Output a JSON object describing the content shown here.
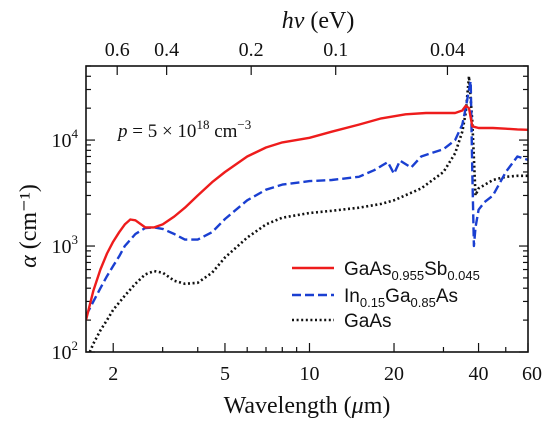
{
  "chart_data": {
    "type": "line",
    "top_axis_label": "hν (eV)",
    "top_ticks": [
      "0.6",
      "0.4",
      "0.2",
      "0.1",
      "0.04"
    ],
    "top_tick_values_ev": [
      0.6,
      0.4,
      0.2,
      0.1,
      0.04
    ],
    "xlabel": "Wavelength (μm)",
    "ylabel": "α (cm⁻¹)",
    "xscale": "log",
    "yscale": "log",
    "xlim": [
      1.6,
      60
    ],
    "ylim": [
      100,
      50000
    ],
    "x_ticks": [
      2,
      5,
      10,
      20,
      40,
      60
    ],
    "x_tick_labels": [
      "2",
      "5",
      "10",
      "20",
      "40",
      "60"
    ],
    "y_ticks": [
      100,
      1000,
      10000
    ],
    "y_tick_labels": [
      {
        "base": "10",
        "exp": "2"
      },
      {
        "base": "10",
        "exp": "3"
      },
      {
        "base": "10",
        "exp": "4"
      }
    ],
    "annotation": {
      "prefix": "p = 5 × 10",
      "exp1": "18",
      "mid": " cm",
      "exp2": "−3"
    },
    "legend_position": "bottom-right",
    "series": [
      {
        "label_parts": [
          [
            "GaAs",
            ""
          ],
          [
            "0.955",
            "sub"
          ],
          [
            "Sb",
            ""
          ],
          [
            "0.045",
            "sub"
          ]
        ],
        "color": "#ee1c1c",
        "dash": "solid",
        "x": [
          1.6,
          1.7,
          1.8,
          1.9,
          2.0,
          2.1,
          2.2,
          2.3,
          2.4,
          2.6,
          2.8,
          3.0,
          3.3,
          3.6,
          4.0,
          4.5,
          5.0,
          6.0,
          7.0,
          8.0,
          10,
          12,
          15,
          18,
          22,
          26,
          30,
          33,
          35,
          36,
          37,
          38,
          40,
          45,
          50,
          55,
          60
        ],
        "y": [
          200,
          380,
          600,
          850,
          1100,
          1350,
          1600,
          1780,
          1750,
          1500,
          1500,
          1600,
          1900,
          2300,
          3000,
          4000,
          5000,
          7000,
          8500,
          9500,
          10500,
          12000,
          14000,
          16000,
          17500,
          18000,
          18000,
          18000,
          19000,
          21000,
          20000,
          13500,
          13000,
          13000,
          12800,
          12600,
          12500
        ]
      },
      {
        "label_parts": [
          [
            "In",
            ""
          ],
          [
            "0.15",
            "sub"
          ],
          [
            "Ga",
            ""
          ],
          [
            "0.85",
            "sub"
          ],
          [
            "As",
            ""
          ]
        ],
        "color": "#1a3fd1",
        "dash": "9,4",
        "x": [
          1.6,
          1.7,
          1.8,
          1.9,
          2.0,
          2.1,
          2.2,
          2.4,
          2.6,
          2.8,
          3.0,
          3.3,
          3.6,
          4.0,
          4.5,
          5.0,
          6.0,
          7.0,
          8.0,
          10,
          12,
          15,
          17,
          19,
          20,
          21,
          23,
          25,
          27,
          30,
          33,
          35,
          36,
          37,
          37.5,
          38,
          38.5,
          39,
          40,
          42,
          45,
          50,
          55,
          60
        ],
        "y": [
          220,
          300,
          400,
          520,
          650,
          800,
          1000,
          1300,
          1480,
          1500,
          1450,
          1300,
          1150,
          1150,
          1350,
          1800,
          2700,
          3400,
          3800,
          4100,
          4200,
          4500,
          5200,
          6200,
          4800,
          6400,
          5500,
          7000,
          7500,
          8200,
          10000,
          14000,
          20000,
          30000,
          36000,
          5000,
          1000,
          1500,
          2200,
          2600,
          3000,
          5000,
          7000,
          6500
        ]
      },
      {
        "label_parts": [
          [
            "GaAs",
            ""
          ]
        ],
        "color": "#111111",
        "dash": "2,2.6",
        "x": [
          1.65,
          1.7,
          1.8,
          1.9,
          2.0,
          2.2,
          2.4,
          2.6,
          2.8,
          3.0,
          3.3,
          3.6,
          4.0,
          4.5,
          5.0,
          6.0,
          7.0,
          8.0,
          10,
          12,
          15,
          18,
          20,
          25,
          30,
          33,
          35,
          36,
          37,
          38,
          39,
          40,
          45,
          50,
          55,
          60
        ],
        "y": [
          100,
          120,
          160,
          200,
          250,
          340,
          440,
          540,
          580,
          560,
          470,
          440,
          450,
          560,
          780,
          1200,
          1600,
          1850,
          2050,
          2150,
          2300,
          2500,
          2700,
          3500,
          5000,
          7500,
          12000,
          18000,
          40000,
          15000,
          3000,
          3500,
          4200,
          4500,
          4600,
          4600
        ]
      }
    ]
  }
}
